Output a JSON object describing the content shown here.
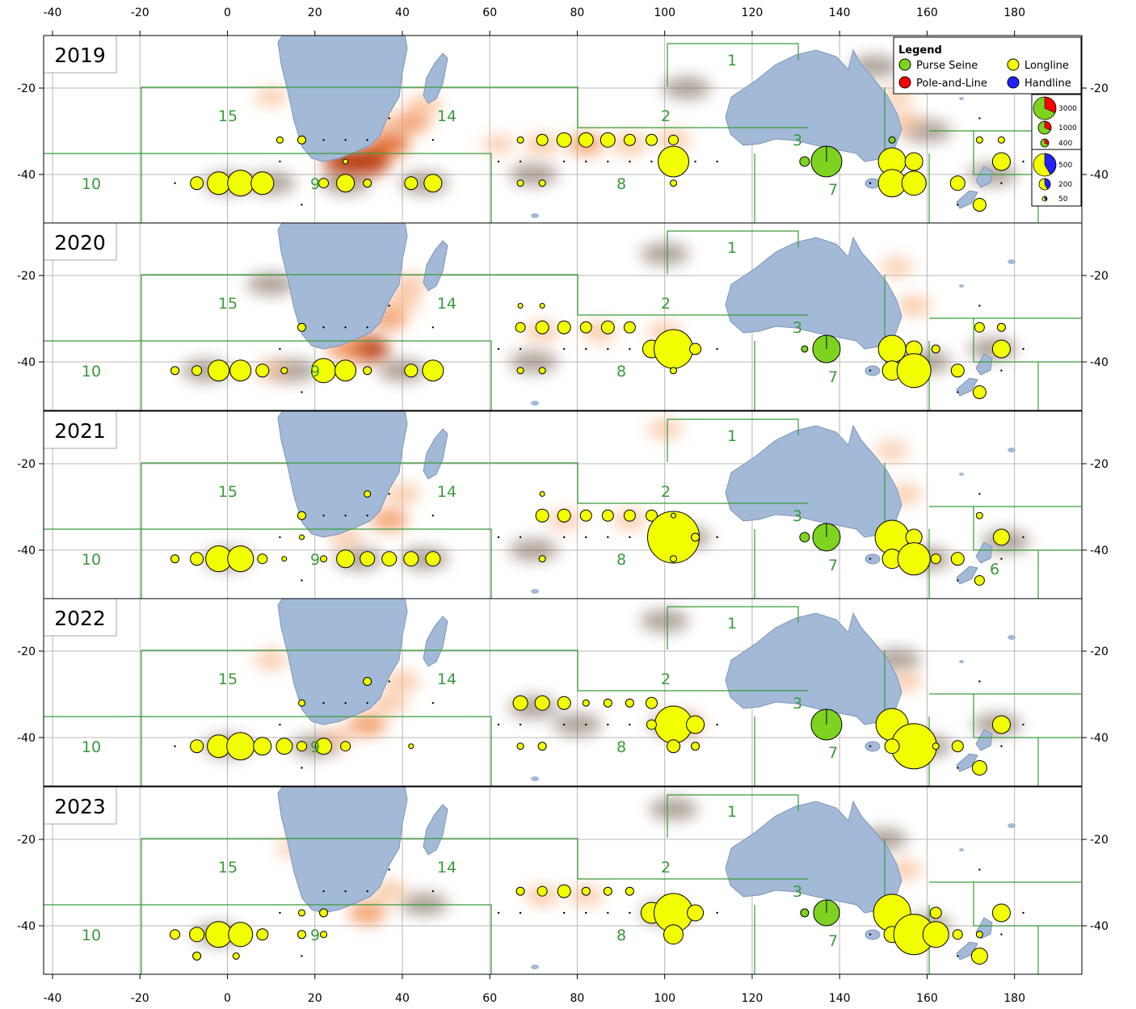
{
  "x_ticks": [
    "-40",
    "-20",
    "0",
    "20",
    "40",
    "60",
    "80",
    "100",
    "120",
    "140",
    "160",
    "180"
  ],
  "y_ticks": [
    "-20",
    "-40"
  ],
  "legend": {
    "title": "Legend",
    "items": [
      {
        "label": "Purse Seine",
        "color": "#7ed321"
      },
      {
        "label": "Longline",
        "color": "#f2ff00"
      },
      {
        "label": "Pole-and-Line",
        "color": "#ff0000"
      },
      {
        "label": "Handline",
        "color": "#2222ff"
      }
    ],
    "pole_scale": [
      "3000",
      "1000",
      "400"
    ],
    "hand_scale": [
      "500",
      "200",
      "50"
    ]
  },
  "area_labels": [
    "1",
    "2",
    "3",
    "6",
    "7",
    "8",
    "9",
    "10",
    "14",
    "15"
  ],
  "panels": [
    {
      "year": "2019",
      "heat": [
        [
          32,
          -37,
          1
        ],
        [
          27,
          -37,
          0.9
        ],
        [
          37,
          -33,
          0.7
        ],
        [
          42,
          -28,
          0.5
        ],
        [
          45,
          -24,
          0.4
        ],
        [
          35,
          -28,
          0.3
        ],
        [
          82,
          -33,
          0.45
        ],
        [
          72,
          -33,
          0.4
        ],
        [
          92,
          -33,
          0.4
        ],
        [
          102,
          -32,
          0.35
        ],
        [
          62,
          -33,
          0.2
        ],
        [
          10,
          -22,
          0.25
        ],
        [
          155,
          -28,
          0.4
        ],
        [
          153,
          -22,
          0.25
        ]
      ],
      "shadow": [
        [
          0,
          -42
        ],
        [
          10,
          -42
        ],
        [
          27,
          -42
        ],
        [
          45,
          -42
        ],
        [
          70,
          -40
        ],
        [
          105,
          -20
        ],
        [
          160,
          -30
        ],
        [
          175,
          -40
        ],
        [
          148,
          -15
        ]
      ],
      "ll": [
        [
          -7,
          -42,
          8
        ],
        [
          -2,
          -42,
          14
        ],
        [
          3,
          -42,
          16
        ],
        [
          8,
          -42,
          14
        ],
        [
          17,
          -32,
          5
        ],
        [
          22,
          -42,
          6
        ],
        [
          27,
          -42,
          11
        ],
        [
          32,
          -42,
          5
        ],
        [
          42,
          -42,
          8
        ],
        [
          47,
          -42,
          11
        ],
        [
          67,
          -42,
          4
        ],
        [
          72,
          -42,
          4
        ],
        [
          67,
          -32,
          4
        ],
        [
          72,
          -32,
          7
        ],
        [
          77,
          -32,
          9
        ],
        [
          82,
          -32,
          9
        ],
        [
          87,
          -32,
          9
        ],
        [
          92,
          -32,
          7
        ],
        [
          97,
          -32,
          7
        ],
        [
          102,
          -32,
          6
        ],
        [
          102,
          -37,
          19
        ],
        [
          102,
          -42,
          4
        ],
        [
          152,
          -37,
          17
        ],
        [
          157,
          -37,
          11
        ],
        [
          152,
          -42,
          17
        ],
        [
          157,
          -42,
          15
        ],
        [
          167,
          -42,
          9
        ],
        [
          172,
          -47,
          8
        ],
        [
          177,
          -37,
          11
        ],
        [
          172,
          -32,
          4
        ],
        [
          177,
          -32,
          4
        ],
        [
          12,
          -32,
          4
        ],
        [
          27,
          -37,
          3
        ]
      ],
      "ps": [
        [
          137,
          -37,
          19
        ],
        [
          132,
          -37,
          6
        ],
        [
          152,
          -32,
          4
        ]
      ]
    },
    {
      "year": "2020",
      "heat": [
        [
          32,
          -37,
          0.9
        ],
        [
          27,
          -37,
          0.55
        ],
        [
          37,
          -30,
          0.5
        ],
        [
          40,
          -26,
          0.4
        ],
        [
          42,
          -22,
          0.3
        ],
        [
          85,
          -33,
          0.35
        ],
        [
          72,
          -33,
          0.35
        ],
        [
          100,
          -33,
          0.3
        ],
        [
          157,
          -27,
          0.35
        ],
        [
          153,
          -18,
          0.25
        ],
        [
          10,
          -42,
          0.3
        ]
      ],
      "shadow": [
        [
          -5,
          -42
        ],
        [
          15,
          -42
        ],
        [
          40,
          -42
        ],
        [
          70,
          -40
        ],
        [
          100,
          -15
        ],
        [
          10,
          -22
        ],
        [
          160,
          -40
        ],
        [
          175,
          -37
        ]
      ],
      "ll": [
        [
          -12,
          -42,
          5
        ],
        [
          -7,
          -42,
          6
        ],
        [
          -2,
          -42,
          13
        ],
        [
          3,
          -42,
          13
        ],
        [
          8,
          -42,
          8
        ],
        [
          13,
          -42,
          4
        ],
        [
          17,
          -32,
          5
        ],
        [
          22,
          -42,
          15
        ],
        [
          27,
          -42,
          13
        ],
        [
          32,
          -42,
          5
        ],
        [
          42,
          -42,
          8
        ],
        [
          47,
          -42,
          13
        ],
        [
          67,
          -42,
          4
        ],
        [
          72,
          -42,
          4
        ],
        [
          67,
          -32,
          6
        ],
        [
          72,
          -32,
          8
        ],
        [
          77,
          -32,
          8
        ],
        [
          82,
          -32,
          7
        ],
        [
          87,
          -32,
          8
        ],
        [
          92,
          -32,
          7
        ],
        [
          97,
          -37,
          11
        ],
        [
          102,
          -37,
          24
        ],
        [
          107,
          -37,
          7
        ],
        [
          102,
          -42,
          4
        ],
        [
          152,
          -37,
          17
        ],
        [
          157,
          -37,
          10
        ],
        [
          152,
          -42,
          12
        ],
        [
          157,
          -42,
          21
        ],
        [
          162,
          -37,
          5
        ],
        [
          167,
          -42,
          8
        ],
        [
          172,
          -47,
          8
        ],
        [
          177,
          -37,
          11
        ],
        [
          172,
          -32,
          6
        ],
        [
          177,
          -32,
          5
        ],
        [
          72,
          -27,
          3
        ],
        [
          67,
          -27,
          3
        ]
      ],
      "ps": [
        [
          137,
          -37,
          17
        ],
        [
          132,
          -37,
          4
        ]
      ]
    },
    {
      "year": "2021",
      "heat": [
        [
          37,
          -33,
          0.5
        ],
        [
          27,
          -37,
          0.3
        ],
        [
          40,
          -27,
          0.35
        ],
        [
          77,
          -33,
          0.3
        ],
        [
          92,
          -33,
          0.3
        ],
        [
          155,
          -27,
          0.3
        ],
        [
          152,
          -17,
          0.25
        ],
        [
          100,
          -12,
          0.3
        ],
        [
          20,
          -22,
          0.35
        ]
      ],
      "shadow": [
        [
          0,
          -42
        ],
        [
          30,
          -42
        ],
        [
          45,
          -42
        ],
        [
          70,
          -40
        ],
        [
          105,
          -37
        ],
        [
          160,
          -42
        ],
        [
          178,
          -38
        ]
      ],
      "ll": [
        [
          -12,
          -42,
          5
        ],
        [
          -7,
          -42,
          8
        ],
        [
          -2,
          -42,
          16
        ],
        [
          3,
          -42,
          16
        ],
        [
          8,
          -42,
          6
        ],
        [
          13,
          -42,
          3
        ],
        [
          17,
          -32,
          5
        ],
        [
          22,
          -42,
          4
        ],
        [
          27,
          -42,
          11
        ],
        [
          32,
          -42,
          9
        ],
        [
          37,
          -42,
          9
        ],
        [
          42,
          -42,
          9
        ],
        [
          47,
          -42,
          9
        ],
        [
          72,
          -32,
          8
        ],
        [
          77,
          -32,
          8
        ],
        [
          82,
          -32,
          7
        ],
        [
          87,
          -32,
          7
        ],
        [
          92,
          -32,
          7
        ],
        [
          97,
          -32,
          7
        ],
        [
          102,
          -37,
          32
        ],
        [
          107,
          -37,
          5
        ],
        [
          102,
          -32,
          3
        ],
        [
          102,
          -42,
          4
        ],
        [
          152,
          -37,
          21
        ],
        [
          157,
          -37,
          10
        ],
        [
          152,
          -42,
          12
        ],
        [
          157,
          -42,
          20
        ],
        [
          162,
          -42,
          6
        ],
        [
          167,
          -42,
          8
        ],
        [
          172,
          -47,
          6
        ],
        [
          177,
          -37,
          10
        ],
        [
          172,
          -32,
          4
        ],
        [
          32,
          -27,
          4
        ],
        [
          72,
          -27,
          3
        ],
        [
          72,
          -42,
          4
        ],
        [
          17,
          -37,
          3
        ]
      ],
      "ps": [
        [
          137,
          -37,
          17
        ],
        [
          132,
          -37,
          6
        ]
      ]
    },
    {
      "year": "2022",
      "heat": [
        [
          32,
          -37,
          0.55
        ],
        [
          37,
          -32,
          0.4
        ],
        [
          40,
          -27,
          0.35
        ],
        [
          25,
          -40,
          0.3
        ],
        [
          155,
          -27,
          0.3
        ],
        [
          105,
          -37,
          0.3
        ],
        [
          10,
          -22,
          0.3
        ]
      ],
      "shadow": [
        [
          0,
          -42
        ],
        [
          20,
          -42
        ],
        [
          70,
          -33
        ],
        [
          80,
          -37
        ],
        [
          100,
          -13
        ],
        [
          102,
          -37
        ],
        [
          153,
          -22
        ],
        [
          160,
          -42
        ],
        [
          176,
          -37
        ],
        [
          25,
          -22
        ]
      ],
      "ll": [
        [
          -7,
          -42,
          8
        ],
        [
          -2,
          -42,
          14
        ],
        [
          3,
          -42,
          17
        ],
        [
          8,
          -42,
          11
        ],
        [
          13,
          -42,
          10
        ],
        [
          17,
          -42,
          6
        ],
        [
          22,
          -42,
          10
        ],
        [
          27,
          -42,
          6
        ],
        [
          67,
          -32,
          9
        ],
        [
          72,
          -32,
          9
        ],
        [
          77,
          -32,
          8
        ],
        [
          82,
          -32,
          4
        ],
        [
          87,
          -32,
          5
        ],
        [
          92,
          -32,
          5
        ],
        [
          97,
          -32,
          7
        ],
        [
          102,
          -37,
          23
        ],
        [
          107,
          -37,
          11
        ],
        [
          97,
          -37,
          6
        ],
        [
          102,
          -42,
          8
        ],
        [
          107,
          -42,
          5
        ],
        [
          152,
          -37,
          20
        ],
        [
          157,
          -42,
          28
        ],
        [
          152,
          -42,
          9
        ],
        [
          162,
          -42,
          4
        ],
        [
          167,
          -42,
          7
        ],
        [
          172,
          -47,
          9
        ],
        [
          177,
          -37,
          11
        ],
        [
          32,
          -27,
          5
        ],
        [
          67,
          -42,
          4
        ],
        [
          72,
          -42,
          5
        ],
        [
          42,
          -42,
          3
        ],
        [
          17,
          -32,
          4
        ]
      ],
      "ps": [
        [
          137,
          -37,
          19
        ]
      ]
    },
    {
      "year": "2023",
      "heat": [
        [
          32,
          -37,
          0.55
        ],
        [
          37,
          -32,
          0.4
        ],
        [
          72,
          -33,
          0.35
        ],
        [
          82,
          -33,
          0.3
        ],
        [
          155,
          -27,
          0.3
        ],
        [
          15,
          -22,
          0.2
        ]
      ],
      "shadow": [
        [
          -2,
          -42
        ],
        [
          100,
          -37
        ],
        [
          102,
          -13
        ],
        [
          160,
          -40
        ],
        [
          150,
          -20
        ],
        [
          45,
          -35
        ]
      ],
      "ll": [
        [
          -12,
          -42,
          6
        ],
        [
          -7,
          -42,
          9
        ],
        [
          -2,
          -42,
          16
        ],
        [
          3,
          -42,
          15
        ],
        [
          8,
          -42,
          7
        ],
        [
          17,
          -37,
          4
        ],
        [
          22,
          -37,
          5
        ],
        [
          17,
          -42,
          5
        ],
        [
          22,
          -42,
          4
        ],
        [
          67,
          -32,
          5
        ],
        [
          72,
          -32,
          6
        ],
        [
          77,
          -32,
          8
        ],
        [
          82,
          -32,
          5
        ],
        [
          87,
          -32,
          5
        ],
        [
          92,
          -32,
          5
        ],
        [
          97,
          -37,
          13
        ],
        [
          102,
          -37,
          24
        ],
        [
          107,
          -37,
          10
        ],
        [
          102,
          -42,
          12
        ],
        [
          152,
          -37,
          23
        ],
        [
          152,
          -42,
          10
        ],
        [
          157,
          -42,
          25
        ],
        [
          162,
          -42,
          16
        ],
        [
          162,
          -37,
          7
        ],
        [
          167,
          -42,
          6
        ],
        [
          172,
          -47,
          10
        ],
        [
          177,
          -37,
          11
        ],
        [
          172,
          -42,
          4
        ],
        [
          -7,
          -47,
          5
        ],
        [
          2,
          -47,
          4
        ]
      ],
      "ps": [
        [
          137,
          -37,
          16
        ],
        [
          132,
          -37,
          5
        ]
      ]
    }
  ]
}
